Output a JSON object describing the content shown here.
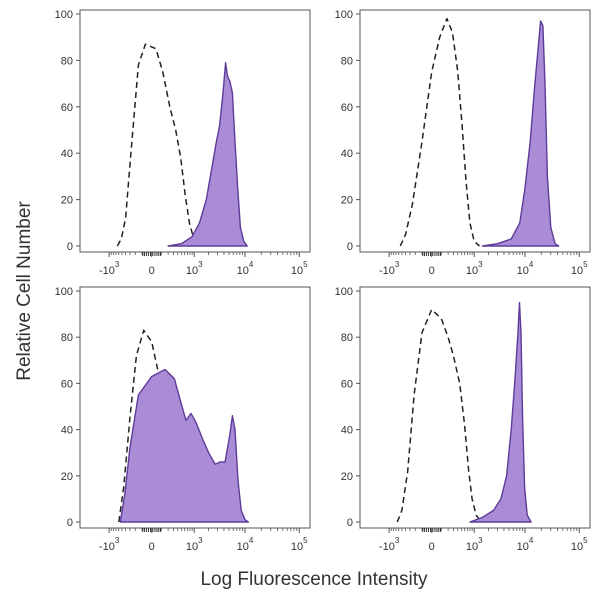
{
  "figure": {
    "ylabel": "Relative Cell Number",
    "xlabel": "Log Fluorescence Intensity",
    "colors": {
      "fill": "#a98bd6",
      "stroke": "#5e3c99",
      "control": "#222222",
      "frame": "#555555"
    }
  },
  "chart_data": [
    {
      "type": "area",
      "panel": "top-left",
      "xscale": "biexponential",
      "ylim": [
        0,
        100
      ],
      "yticks": [
        0,
        20,
        40,
        60,
        80,
        100
      ],
      "xticks": [
        {
          "base": "-10",
          "exp": "3",
          "value": -1000
        },
        {
          "base": "0",
          "exp": "",
          "value": 0
        },
        {
          "base": "10",
          "exp": "3",
          "value": 1000
        },
        {
          "base": "10",
          "exp": "4",
          "value": 10000
        },
        {
          "base": "10",
          "exp": "5",
          "value": 100000
        }
      ],
      "series": [
        {
          "role": "control",
          "style": "dashed",
          "points": [
            [
              -650,
              0
            ],
            [
              -520,
              3
            ],
            [
              -400,
              12
            ],
            [
              -280,
              40
            ],
            [
              -150,
              78
            ],
            [
              -60,
              87
            ],
            [
              40,
              85
            ],
            [
              120,
              75
            ],
            [
              230,
              60
            ],
            [
              350,
              50
            ],
            [
              480,
              38
            ],
            [
              620,
              22
            ],
            [
              780,
              10
            ],
            [
              950,
              4
            ],
            [
              1150,
              1
            ],
            [
              1400,
              0
            ]
          ]
        },
        {
          "role": "stained",
          "style": "filled",
          "points": [
            [
              200,
              0
            ],
            [
              500,
              1
            ],
            [
              900,
              4
            ],
            [
              1300,
              10
            ],
            [
              1800,
              20
            ],
            [
              2300,
              33
            ],
            [
              2800,
              44
            ],
            [
              3300,
              52
            ],
            [
              3800,
              65
            ],
            [
              4300,
              79
            ],
            [
              4700,
              73
            ],
            [
              5200,
              71
            ],
            [
              5800,
              66
            ],
            [
              6500,
              45
            ],
            [
              7300,
              25
            ],
            [
              8200,
              8
            ],
            [
              9500,
              2
            ],
            [
              11000,
              0
            ]
          ]
        }
      ]
    },
    {
      "type": "area",
      "panel": "top-right",
      "xscale": "biexponential",
      "ylim": [
        0,
        100
      ],
      "yticks": [
        0,
        20,
        40,
        60,
        80,
        100
      ],
      "xticks": [
        {
          "base": "-10",
          "exp": "3",
          "value": -1000
        },
        {
          "base": "0",
          "exp": "",
          "value": 0
        },
        {
          "base": "10",
          "exp": "3",
          "value": 1000
        },
        {
          "base": "10",
          "exp": "4",
          "value": 10000
        },
        {
          "base": "10",
          "exp": "5",
          "value": 100000
        }
      ],
      "series": [
        {
          "role": "control",
          "style": "dashed",
          "points": [
            [
              -550,
              0
            ],
            [
              -400,
              5
            ],
            [
              -250,
              18
            ],
            [
              -100,
              45
            ],
            [
              0,
              75
            ],
            [
              80,
              90
            ],
            [
              180,
              98
            ],
            [
              280,
              92
            ],
            [
              400,
              75
            ],
            [
              520,
              52
            ],
            [
              650,
              28
            ],
            [
              800,
              10
            ],
            [
              1000,
              2
            ],
            [
              1300,
              0
            ]
          ]
        },
        {
          "role": "stained",
          "style": "filled",
          "points": [
            [
              1500,
              0
            ],
            [
              3000,
              1
            ],
            [
              5500,
              3
            ],
            [
              8000,
              10
            ],
            [
              10000,
              25
            ],
            [
              12500,
              45
            ],
            [
              15000,
              68
            ],
            [
              17500,
              85
            ],
            [
              19500,
              97
            ],
            [
              21500,
              95
            ],
            [
              23500,
              70
            ],
            [
              26000,
              30
            ],
            [
              30000,
              8
            ],
            [
              36000,
              1
            ],
            [
              42000,
              0
            ]
          ]
        }
      ]
    },
    {
      "type": "area",
      "panel": "bottom-left",
      "xscale": "biexponential",
      "ylim": [
        0,
        100
      ],
      "yticks": [
        0,
        20,
        40,
        60,
        80,
        100
      ],
      "xticks": [
        {
          "base": "-10",
          "exp": "3",
          "value": -1000
        },
        {
          "base": "0",
          "exp": "",
          "value": 0
        },
        {
          "base": "10",
          "exp": "3",
          "value": 1000
        },
        {
          "base": "10",
          "exp": "4",
          "value": 10000
        },
        {
          "base": "10",
          "exp": "5",
          "value": 100000
        }
      ],
      "series": [
        {
          "role": "control",
          "style": "dashed",
          "points": [
            [
              -600,
              0
            ],
            [
              -450,
              15
            ],
            [
              -300,
              45
            ],
            [
              -180,
              72
            ],
            [
              -80,
              83
            ],
            [
              0,
              78
            ],
            [
              80,
              62
            ],
            [
              160,
              45
            ],
            [
              240,
              28
            ],
            [
              330,
              15
            ],
            [
              430,
              8
            ],
            [
              560,
              5
            ],
            [
              750,
              3
            ],
            [
              1000,
              1
            ],
            [
              1500,
              0
            ]
          ]
        },
        {
          "role": "stained",
          "style": "filled",
          "points": [
            [
              -550,
              0
            ],
            [
              -420,
              12
            ],
            [
              -300,
              32
            ],
            [
              -150,
              55
            ],
            [
              0,
              63
            ],
            [
              150,
              66
            ],
            [
              320,
              62
            ],
            [
              500,
              51
            ],
            [
              650,
              44
            ],
            [
              850,
              47
            ],
            [
              1100,
              43
            ],
            [
              1500,
              36
            ],
            [
              2000,
              30
            ],
            [
              2700,
              25
            ],
            [
              3400,
              26
            ],
            [
              4200,
              26
            ],
            [
              5200,
              38
            ],
            [
              5800,
              46
            ],
            [
              6500,
              40
            ],
            [
              7400,
              18
            ],
            [
              8500,
              5
            ],
            [
              10000,
              1
            ],
            [
              11500,
              0
            ]
          ]
        }
      ]
    },
    {
      "type": "area",
      "panel": "bottom-right",
      "xscale": "biexponential",
      "ylim": [
        0,
        100
      ],
      "yticks": [
        0,
        20,
        40,
        60,
        80,
        100
      ],
      "xticks": [
        {
          "base": "-10",
          "exp": "3",
          "value": -1000
        },
        {
          "base": "0",
          "exp": "",
          "value": 0
        },
        {
          "base": "10",
          "exp": "3",
          "value": 1000
        },
        {
          "base": "10",
          "exp": "4",
          "value": 10000
        },
        {
          "base": "10",
          "exp": "5",
          "value": 100000
        }
      ],
      "series": [
        {
          "role": "control",
          "style": "dashed",
          "points": [
            [
              -650,
              0
            ],
            [
              -500,
              5
            ],
            [
              -350,
              22
            ],
            [
              -220,
              55
            ],
            [
              -100,
              82
            ],
            [
              0,
              92
            ],
            [
              100,
              88
            ],
            [
              200,
              80
            ],
            [
              300,
              72
            ],
            [
              450,
              60
            ],
            [
              600,
              42
            ],
            [
              750,
              22
            ],
            [
              900,
              10
            ],
            [
              1100,
              3
            ],
            [
              1400,
              0
            ]
          ]
        },
        {
          "role": "stained",
          "style": "filled",
          "points": [
            [
              800,
              0
            ],
            [
              1500,
              2
            ],
            [
              2500,
              5
            ],
            [
              3500,
              10
            ],
            [
              4500,
              20
            ],
            [
              5500,
              40
            ],
            [
              6500,
              62
            ],
            [
              7300,
              80
            ],
            [
              7900,
              95
            ],
            [
              8400,
              82
            ],
            [
              9000,
              45
            ],
            [
              9800,
              15
            ],
            [
              11000,
              3
            ],
            [
              13000,
              0
            ]
          ]
        }
      ]
    }
  ]
}
